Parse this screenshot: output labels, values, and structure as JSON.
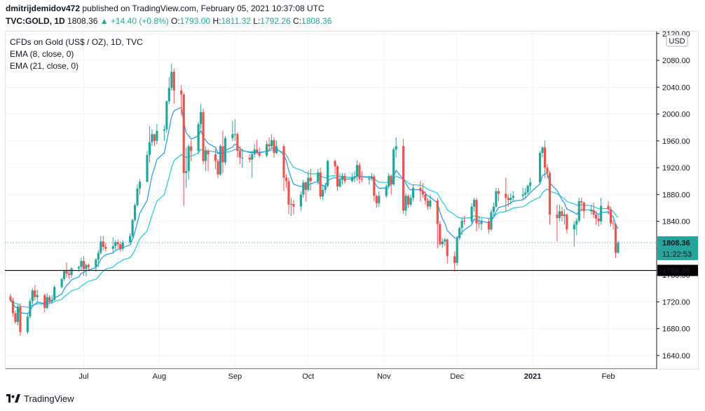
{
  "header": {
    "publisher": "dmitrijdemidov472",
    "published_text": "published on TradingView.com, February 05, 2021 10:37:08 UTC",
    "symbol_line": "TVC:GOLD, 1D",
    "last": "1808.36",
    "change": "▲ +14.40 (+0.8%)",
    "o_label": "O:",
    "o_value": "1793.00",
    "h_label": "H:",
    "h_value": "1811.32",
    "l_label": "L:",
    "l_value": "1792.26",
    "c_label": "C:",
    "c_value": "1808.36"
  },
  "legend": {
    "title": "CFDs on Gold (US$ / OZ), 1D, TVC",
    "ema8": "EMA (8, close, 0)",
    "ema21": "EMA (21, close, 0)"
  },
  "footer": {
    "brand": "TradingView"
  },
  "colors": {
    "up": "#26a69a",
    "down": "#ef5350",
    "ema8": "#2196f3",
    "ema21": "#26c6da",
    "grid": "#f0f3fa",
    "axis": "#131722"
  },
  "chart_data": {
    "type": "candlestick",
    "currency_label": "USD",
    "y_ticks": [
      1640,
      1680,
      1720,
      1760,
      1800,
      1840,
      1880,
      1920,
      1960,
      2000,
      2040,
      2080,
      2120
    ],
    "ylim": [
      1620,
      2124
    ],
    "x_labels": [
      {
        "label": "Jul",
        "date": "2020-07-01"
      },
      {
        "label": "Aug",
        "date": "2020-08-01"
      },
      {
        "label": "Sep",
        "date": "2020-09-01"
      },
      {
        "label": "Oct",
        "date": "2020-10-01"
      },
      {
        "label": "Nov",
        "date": "2020-11-01"
      },
      {
        "label": "Dec",
        "date": "2020-12-01"
      },
      {
        "label": "2021",
        "date": "2021-01-01"
      },
      {
        "label": "Feb",
        "date": "2021-02-01"
      }
    ],
    "last_price": {
      "value": 1808.36,
      "label": "1808.36",
      "countdown": "11:22:53"
    },
    "support_line": {
      "value": 1766.86,
      "label": "1766.86"
    },
    "candles": [
      [
        "2020-06-01",
        1728,
        1732,
        1720,
        1722
      ],
      [
        "2020-06-02",
        1722,
        1726,
        1698,
        1703
      ],
      [
        "2020-06-03",
        1703,
        1707,
        1687,
        1690
      ],
      [
        "2020-06-04",
        1690,
        1716,
        1685,
        1713
      ],
      [
        "2020-06-05",
        1713,
        1718,
        1670,
        1675
      ],
      [
        "2020-06-08",
        1675,
        1702,
        1672,
        1698
      ],
      [
        "2020-06-09",
        1698,
        1725,
        1695,
        1721
      ],
      [
        "2020-06-10",
        1721,
        1740,
        1716,
        1737
      ],
      [
        "2020-06-11",
        1737,
        1745,
        1722,
        1727
      ],
      [
        "2020-06-12",
        1727,
        1738,
        1720,
        1730
      ],
      [
        "2020-06-15",
        1730,
        1732,
        1704,
        1711
      ],
      [
        "2020-06-16",
        1711,
        1733,
        1709,
        1727
      ],
      [
        "2020-06-17",
        1727,
        1730,
        1716,
        1721
      ],
      [
        "2020-06-18",
        1721,
        1730,
        1717,
        1723
      ],
      [
        "2020-06-19",
        1723,
        1745,
        1722,
        1742
      ],
      [
        "2020-06-22",
        1742,
        1756,
        1740,
        1754
      ],
      [
        "2020-06-23",
        1754,
        1768,
        1751,
        1766
      ],
      [
        "2020-06-24",
        1766,
        1779,
        1756,
        1762
      ],
      [
        "2020-06-25",
        1762,
        1767,
        1754,
        1760
      ],
      [
        "2020-06-26",
        1760,
        1772,
        1756,
        1770
      ],
      [
        "2020-06-29",
        1770,
        1774,
        1765,
        1772
      ],
      [
        "2020-06-30",
        1772,
        1786,
        1767,
        1781
      ],
      [
        "2020-07-01",
        1781,
        1788,
        1759,
        1769
      ],
      [
        "2020-07-02",
        1769,
        1777,
        1758,
        1775
      ],
      [
        "2020-07-03",
        1775,
        1777,
        1766,
        1772
      ],
      [
        "2020-07-06",
        1772,
        1785,
        1765,
        1783
      ],
      [
        "2020-07-07",
        1783,
        1797,
        1772,
        1793
      ],
      [
        "2020-07-08",
        1793,
        1818,
        1790,
        1810
      ],
      [
        "2020-07-09",
        1810,
        1818,
        1797,
        1802
      ],
      [
        "2020-07-10",
        1802,
        1808,
        1795,
        1799
      ],
      [
        "2020-07-13",
        1799,
        1816,
        1792,
        1803
      ],
      [
        "2020-07-14",
        1803,
        1812,
        1798,
        1809
      ],
      [
        "2020-07-15",
        1809,
        1813,
        1800,
        1806
      ],
      [
        "2020-07-16",
        1806,
        1810,
        1795,
        1799
      ],
      [
        "2020-07-17",
        1799,
        1812,
        1796,
        1809
      ],
      [
        "2020-07-20",
        1809,
        1822,
        1807,
        1818
      ],
      [
        "2020-07-21",
        1818,
        1844,
        1816,
        1842
      ],
      [
        "2020-07-22",
        1842,
        1867,
        1840,
        1864
      ],
      [
        "2020-07-23",
        1864,
        1895,
        1862,
        1889
      ],
      [
        "2020-07-24",
        1889,
        1903,
        1880,
        1899
      ],
      [
        "2020-07-27",
        1899,
        1945,
        1898,
        1939
      ],
      [
        "2020-07-28",
        1939,
        1982,
        1928,
        1958
      ],
      [
        "2020-07-29",
        1958,
        1977,
        1952,
        1970
      ],
      [
        "2020-07-30",
        1970,
        1970,
        1952,
        1960
      ],
      [
        "2020-07-31",
        1960,
        1985,
        1955,
        1975
      ],
      [
        "2020-08-03",
        1975,
        1983,
        1960,
        1977
      ],
      [
        "2020-08-04",
        1977,
        2020,
        1972,
        2019
      ],
      [
        "2020-08-05",
        2019,
        2055,
        2015,
        2039
      ],
      [
        "2020-08-06",
        2039,
        2075,
        2035,
        2063
      ],
      [
        "2020-08-07",
        2063,
        2068,
        2015,
        2035
      ],
      [
        "2020-08-10",
        2035,
        2043,
        1998,
        2029
      ],
      [
        "2020-08-11",
        2029,
        2032,
        1863,
        1912
      ],
      [
        "2020-08-12",
        1912,
        1950,
        1890,
        1915
      ],
      [
        "2020-08-13",
        1915,
        1955,
        1902,
        1952
      ],
      [
        "2020-08-14",
        1952,
        1961,
        1930,
        1945
      ],
      [
        "2020-08-17",
        1945,
        1988,
        1940,
        1985
      ],
      [
        "2020-08-18",
        1985,
        2015,
        1978,
        2003
      ],
      [
        "2020-08-19",
        2003,
        2008,
        1925,
        1930
      ],
      [
        "2020-08-20",
        1930,
        1952,
        1915,
        1945
      ],
      [
        "2020-08-21",
        1945,
        1948,
        1915,
        1940
      ],
      [
        "2020-08-24",
        1940,
        1948,
        1918,
        1930
      ],
      [
        "2020-08-25",
        1930,
        1933,
        1905,
        1910
      ],
      [
        "2020-08-26",
        1910,
        1955,
        1908,
        1952
      ],
      [
        "2020-08-27",
        1952,
        1975,
        1912,
        1928
      ],
      [
        "2020-08-28",
        1928,
        1967,
        1924,
        1964
      ],
      [
        "2020-08-31",
        1964,
        1990,
        1960,
        1970
      ],
      [
        "2020-09-01",
        1970,
        1992,
        1960,
        1970
      ],
      [
        "2020-09-02",
        1970,
        1973,
        1935,
        1945
      ],
      [
        "2020-09-03",
        1945,
        1952,
        1925,
        1935
      ],
      [
        "2020-09-04",
        1935,
        1948,
        1920,
        1935
      ],
      [
        "2020-09-07",
        1935,
        1940,
        1928,
        1932
      ],
      [
        "2020-09-08",
        1932,
        1945,
        1905,
        1940
      ],
      [
        "2020-09-09",
        1940,
        1955,
        1935,
        1947
      ],
      [
        "2020-09-10",
        1947,
        1962,
        1940,
        1942
      ],
      [
        "2020-09-11",
        1942,
        1950,
        1935,
        1938
      ],
      [
        "2020-09-14",
        1938,
        1960,
        1935,
        1955
      ],
      [
        "2020-09-15",
        1955,
        1965,
        1945,
        1952
      ],
      [
        "2020-09-16",
        1952,
        1970,
        1950,
        1961
      ],
      [
        "2020-09-17",
        1961,
        1965,
        1935,
        1942
      ],
      [
        "2020-09-18",
        1942,
        1960,
        1940,
        1952
      ],
      [
        "2020-09-21",
        1952,
        1955,
        1885,
        1905
      ],
      [
        "2020-09-22",
        1905,
        1910,
        1890,
        1900
      ],
      [
        "2020-09-23",
        1900,
        1905,
        1851,
        1865
      ],
      [
        "2020-09-24",
        1865,
        1875,
        1848,
        1866
      ],
      [
        "2020-09-25",
        1866,
        1872,
        1850,
        1862
      ],
      [
        "2020-09-28",
        1862,
        1885,
        1855,
        1880
      ],
      [
        "2020-09-29",
        1880,
        1902,
        1875,
        1898
      ],
      [
        "2020-09-30",
        1898,
        1900,
        1870,
        1887
      ],
      [
        "2020-10-01",
        1887,
        1915,
        1884,
        1905
      ],
      [
        "2020-10-02",
        1905,
        1918,
        1886,
        1900
      ],
      [
        "2020-10-05",
        1900,
        1918,
        1895,
        1913
      ],
      [
        "2020-10-06",
        1913,
        1920,
        1873,
        1877
      ],
      [
        "2020-10-07",
        1877,
        1895,
        1872,
        1887
      ],
      [
        "2020-10-08",
        1887,
        1897,
        1882,
        1893
      ],
      [
        "2020-10-09",
        1893,
        1932,
        1890,
        1930
      ],
      [
        "2020-10-12",
        1930,
        1932,
        1910,
        1922
      ],
      [
        "2020-10-13",
        1922,
        1924,
        1885,
        1892
      ],
      [
        "2020-10-14",
        1892,
        1912,
        1890,
        1902
      ],
      [
        "2020-10-15",
        1902,
        1912,
        1895,
        1908
      ],
      [
        "2020-10-16",
        1908,
        1912,
        1896,
        1900
      ],
      [
        "2020-10-19",
        1900,
        1912,
        1898,
        1905
      ],
      [
        "2020-10-20",
        1905,
        1915,
        1898,
        1907
      ],
      [
        "2020-10-21",
        1907,
        1931,
        1900,
        1924
      ],
      [
        "2020-10-22",
        1924,
        1928,
        1896,
        1903
      ],
      [
        "2020-10-23",
        1903,
        1915,
        1898,
        1902
      ],
      [
        "2020-10-26",
        1902,
        1908,
        1895,
        1904
      ],
      [
        "2020-10-27",
        1904,
        1912,
        1900,
        1907
      ],
      [
        "2020-10-28",
        1907,
        1910,
        1870,
        1878
      ],
      [
        "2020-10-29",
        1878,
        1880,
        1860,
        1867
      ],
      [
        "2020-10-30",
        1867,
        1885,
        1862,
        1878
      ],
      [
        "2020-11-02",
        1878,
        1895,
        1875,
        1892
      ],
      [
        "2020-11-03",
        1892,
        1912,
        1888,
        1908
      ],
      [
        "2020-11-04",
        1908,
        1910,
        1880,
        1895
      ],
      [
        "2020-11-05",
        1895,
        1950,
        1893,
        1947
      ],
      [
        "2020-11-06",
        1947,
        1965,
        1935,
        1952
      ],
      [
        "2020-11-09",
        1952,
        1963,
        1851,
        1856
      ],
      [
        "2020-11-10",
        1856,
        1882,
        1848,
        1878
      ],
      [
        "2020-11-11",
        1878,
        1880,
        1860,
        1865
      ],
      [
        "2020-11-12",
        1865,
        1880,
        1862,
        1875
      ],
      [
        "2020-11-13",
        1875,
        1895,
        1870,
        1890
      ],
      [
        "2020-11-16",
        1890,
        1900,
        1870,
        1885
      ],
      [
        "2020-11-17",
        1885,
        1897,
        1875,
        1880
      ],
      [
        "2020-11-18",
        1880,
        1885,
        1865,
        1871
      ],
      [
        "2020-11-19",
        1871,
        1875,
        1857,
        1862
      ],
      [
        "2020-11-20",
        1862,
        1880,
        1858,
        1871
      ],
      [
        "2020-11-23",
        1871,
        1875,
        1800,
        1836
      ],
      [
        "2020-11-24",
        1836,
        1840,
        1804,
        1806
      ],
      [
        "2020-11-25",
        1806,
        1815,
        1801,
        1810
      ],
      [
        "2020-11-26",
        1810,
        1816,
        1803,
        1813
      ],
      [
        "2020-11-27",
        1813,
        1815,
        1777,
        1788
      ],
      [
        "2020-11-30",
        1788,
        1795,
        1765,
        1778
      ],
      [
        "2020-12-01",
        1778,
        1818,
        1774,
        1815
      ],
      [
        "2020-12-02",
        1815,
        1832,
        1812,
        1830
      ],
      [
        "2020-12-03",
        1830,
        1845,
        1820,
        1841
      ],
      [
        "2020-12-04",
        1841,
        1848,
        1835,
        1840
      ],
      [
        "2020-12-07",
        1840,
        1867,
        1836,
        1862
      ],
      [
        "2020-12-08",
        1862,
        1875,
        1855,
        1872
      ],
      [
        "2020-12-09",
        1872,
        1875,
        1825,
        1837
      ],
      [
        "2020-12-10",
        1837,
        1848,
        1830,
        1836
      ],
      [
        "2020-12-11",
        1836,
        1845,
        1827,
        1840
      ],
      [
        "2020-12-14",
        1840,
        1845,
        1822,
        1828
      ],
      [
        "2020-12-15",
        1828,
        1858,
        1825,
        1854
      ],
      [
        "2020-12-16",
        1854,
        1868,
        1848,
        1862
      ],
      [
        "2020-12-17",
        1862,
        1890,
        1860,
        1885
      ],
      [
        "2020-12-18",
        1885,
        1890,
        1870,
        1881
      ],
      [
        "2020-12-21",
        1881,
        1905,
        1855,
        1875
      ],
      [
        "2020-12-22",
        1875,
        1880,
        1862,
        1872
      ],
      [
        "2020-12-23",
        1872,
        1882,
        1865,
        1875
      ],
      [
        "2020-12-24",
        1875,
        1885,
        1870,
        1878
      ],
      [
        "2020-12-28",
        1878,
        1890,
        1872,
        1880
      ],
      [
        "2020-12-29",
        1880,
        1890,
        1874,
        1883
      ],
      [
        "2020-12-30",
        1883,
        1895,
        1880,
        1893
      ],
      [
        "2020-12-31",
        1893,
        1905,
        1885,
        1898
      ],
      [
        "2021-01-04",
        1898,
        1945,
        1895,
        1942
      ],
      [
        "2021-01-05",
        1942,
        1952,
        1935,
        1950
      ],
      [
        "2021-01-06",
        1950,
        1960,
        1905,
        1920
      ],
      [
        "2021-01-07",
        1920,
        1925,
        1905,
        1912
      ],
      [
        "2021-01-08",
        1912,
        1915,
        1835,
        1850
      ],
      [
        "2021-01-11",
        1850,
        1865,
        1810,
        1845
      ],
      [
        "2021-01-12",
        1845,
        1865,
        1840,
        1855
      ],
      [
        "2021-01-13",
        1855,
        1862,
        1840,
        1848
      ],
      [
        "2021-01-14",
        1848,
        1858,
        1835,
        1850
      ],
      [
        "2021-01-15",
        1850,
        1852,
        1822,
        1828
      ],
      [
        "2021-01-18",
        1828,
        1840,
        1802,
        1835
      ],
      [
        "2021-01-19",
        1835,
        1845,
        1820,
        1841
      ],
      [
        "2021-01-20",
        1841,
        1875,
        1838,
        1870
      ],
      [
        "2021-01-21",
        1870,
        1875,
        1855,
        1868
      ],
      [
        "2021-01-22",
        1868,
        1870,
        1845,
        1855
      ],
      [
        "2021-01-25",
        1855,
        1865,
        1850,
        1857
      ],
      [
        "2021-01-26",
        1857,
        1868,
        1845,
        1850
      ],
      [
        "2021-01-27",
        1850,
        1855,
        1835,
        1844
      ],
      [
        "2021-01-28",
        1844,
        1850,
        1832,
        1840
      ],
      [
        "2021-01-29",
        1840,
        1875,
        1835,
        1863
      ],
      [
        "2021-02-01",
        1863,
        1870,
        1850,
        1858
      ],
      [
        "2021-02-02",
        1858,
        1862,
        1832,
        1837
      ],
      [
        "2021-02-03",
        1837,
        1842,
        1828,
        1836
      ],
      [
        "2021-02-04",
        1836,
        1837,
        1785,
        1793
      ],
      [
        "2021-02-05",
        1793,
        1811.32,
        1792.26,
        1808.36
      ]
    ]
  }
}
